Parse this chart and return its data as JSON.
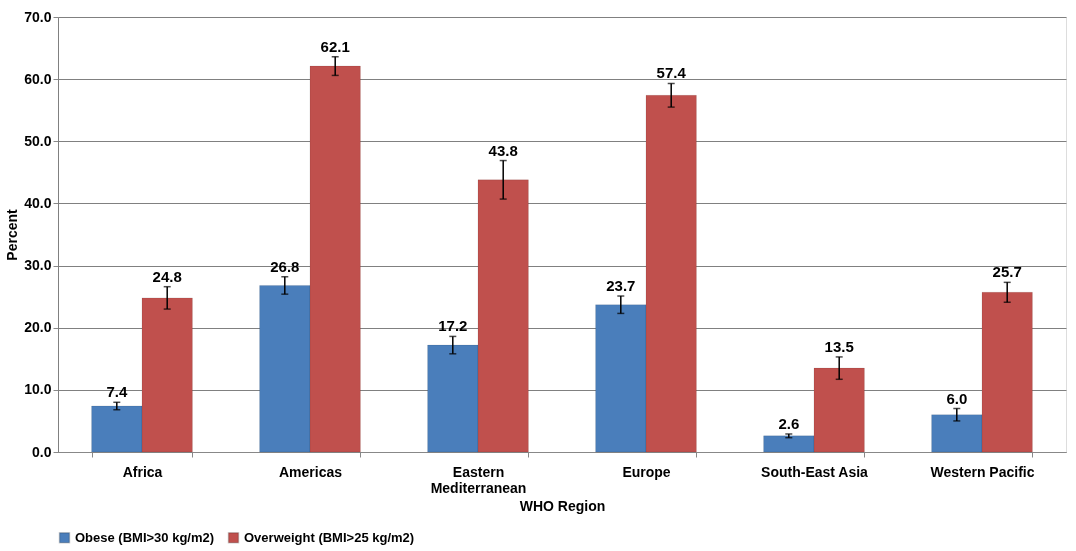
{
  "chart_data": {
    "type": "bar",
    "xlabel": "WHO Region",
    "ylabel": "Percent",
    "categories": [
      "Africa",
      "Americas",
      "Eastern Mediterranean",
      "Europe",
      "South-East Asia",
      "Western Pacific"
    ],
    "series": [
      {
        "name": "Obese (BMI>30 kg/m2)",
        "color": "#4a7ebb",
        "values": [
          7.4,
          26.8,
          17.2,
          23.7,
          2.6,
          6.0
        ],
        "value_labels": [
          "7.4",
          "26.8",
          "17.2",
          "23.7",
          "2.6",
          "6.0"
        ],
        "errors": [
          0.6,
          1.4,
          1.4,
          1.4,
          0.3,
          1.0
        ]
      },
      {
        "name": "Overweight (BMI>25 kg/m2)",
        "color": "#c0504d",
        "values": [
          24.8,
          62.1,
          43.8,
          57.4,
          13.5,
          25.7
        ],
        "value_labels": [
          "24.8",
          "62.1",
          "43.8",
          "57.4",
          "13.5",
          "25.7"
        ],
        "errors": [
          1.8,
          1.5,
          3.1,
          1.9,
          1.8,
          1.6
        ]
      }
    ],
    "ylim": [
      0,
      70
    ],
    "yticks": [
      {
        "value": 0,
        "label": "0.0"
      },
      {
        "value": 10,
        "label": "10.0"
      },
      {
        "value": 20,
        "label": "20.0"
      },
      {
        "value": 30,
        "label": "30.0"
      },
      {
        "value": 40,
        "label": "40.0"
      },
      {
        "value": 50,
        "label": "50.0"
      },
      {
        "value": 60,
        "label": "60.0"
      },
      {
        "value": 70,
        "label": "70.0"
      }
    ],
    "grid": "y",
    "legend": "bottom"
  }
}
